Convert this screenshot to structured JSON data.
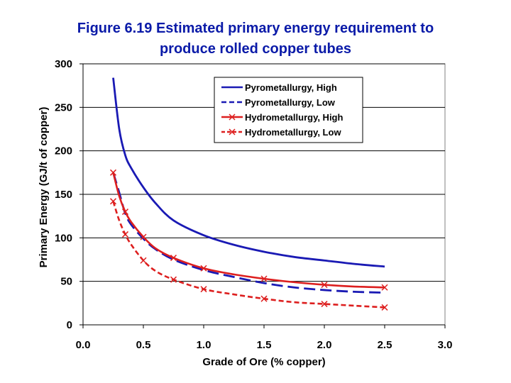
{
  "chart_data": {
    "type": "line",
    "title_line1": "Figure 6.19 Estimated primary energy requirement to",
    "title_line2": "produce rolled copper tubes",
    "xlabel": "Grade of Ore (% copper)",
    "ylabel": "Primary Energy (GJ/t of copper)",
    "xlim": [
      0,
      3
    ],
    "ylim": [
      0,
      300
    ],
    "x_ticks": [
      0,
      0.5,
      1,
      1.5,
      2,
      2.5,
      3
    ],
    "x_tick_labels": [
      "0.0",
      "0.5",
      "1.0",
      "1.5",
      "2.0",
      "2.5",
      "3.0"
    ],
    "y_ticks": [
      0,
      50,
      100,
      150,
      200,
      250,
      300
    ],
    "y_tick_labels": [
      "0",
      "50",
      "100",
      "150",
      "200",
      "250",
      "300"
    ],
    "grid": "horizontal",
    "legend_position": "top-right",
    "series": [
      {
        "name": "Pyrometallurgy, High",
        "color": "#1a1ab4",
        "dash": "solid",
        "marker": "none",
        "x": [
          0.25,
          0.3,
          0.35,
          0.4,
          0.5,
          0.6,
          0.75,
          1.0,
          1.25,
          1.5,
          1.75,
          2.0,
          2.25,
          2.5
        ],
        "y": [
          284,
          225,
          195,
          180,
          158,
          140,
          120,
          103,
          92,
          84,
          78,
          74,
          70,
          67
        ]
      },
      {
        "name": "Pyrometallurgy, Low",
        "color": "#1a1ab4",
        "dash": "dashed",
        "marker": "none",
        "x": [
          0.25,
          0.3,
          0.35,
          0.4,
          0.5,
          0.6,
          0.75,
          1.0,
          1.25,
          1.5,
          1.75,
          2.0,
          2.25,
          2.5
        ],
        "y": [
          175,
          152,
          128,
          115,
          99,
          87,
          75,
          63,
          55,
          48,
          43,
          40,
          38,
          37
        ]
      },
      {
        "name": "Hydrometallurgy, High",
        "color": "#dd1f1f",
        "dash": "solid",
        "marker": "x",
        "x": [
          0.25,
          0.3,
          0.35,
          0.4,
          0.5,
          0.6,
          0.75,
          1.0,
          1.25,
          1.5,
          1.75,
          2.0,
          2.25,
          2.5
        ],
        "y": [
          175,
          148,
          130,
          118,
          101,
          88,
          77,
          65,
          58,
          53,
          49,
          46,
          44,
          43
        ],
        "marker_x": [
          0.25,
          0.35,
          0.5,
          0.75,
          1.0,
          1.5,
          2.0,
          2.5
        ]
      },
      {
        "name": "Hydrometallurgy, Low",
        "color": "#dd1f1f",
        "dash": "dashed",
        "marker": "x",
        "x": [
          0.25,
          0.3,
          0.35,
          0.4,
          0.5,
          0.6,
          0.75,
          1.0,
          1.25,
          1.5,
          1.75,
          2.0,
          2.25,
          2.5
        ],
        "y": [
          142,
          120,
          104,
          92,
          74,
          62,
          52,
          41,
          35,
          30,
          26,
          24,
          22,
          20
        ],
        "marker_x": [
          0.25,
          0.35,
          0.5,
          0.75,
          1.0,
          1.5,
          2.0,
          2.5
        ]
      }
    ]
  }
}
